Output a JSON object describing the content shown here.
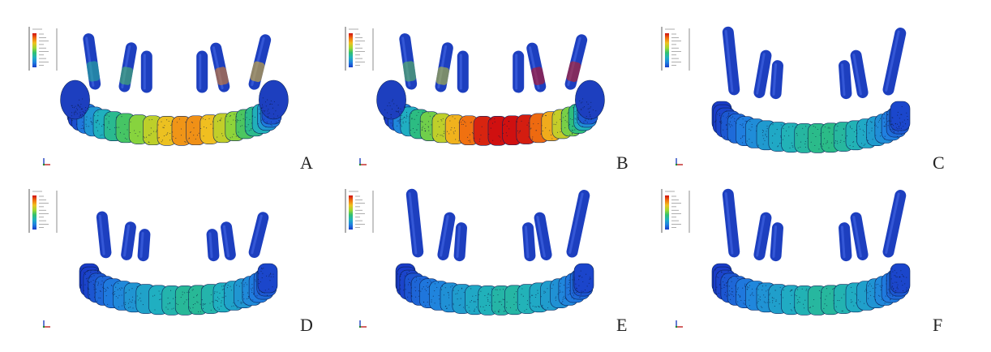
{
  "figure": {
    "panels": [
      {
        "label": "A",
        "stress_level": 0.62,
        "arch": "wide",
        "long_posts": false
      },
      {
        "label": "B",
        "stress_level": 0.85,
        "arch": "wide",
        "long_posts": false
      },
      {
        "label": "C",
        "stress_level": 0.3,
        "arch": "narrow",
        "long_posts": true
      },
      {
        "label": "D",
        "stress_level": 0.28,
        "arch": "narrow",
        "long_posts": false
      },
      {
        "label": "E",
        "stress_level": 0.26,
        "arch": "narrow",
        "long_posts": true
      },
      {
        "label": "F",
        "stress_level": 0.27,
        "arch": "narrow",
        "long_posts": true
      }
    ],
    "colormap": [
      "#d01010",
      "#f07010",
      "#f0c020",
      "#a0d830",
      "#30c070",
      "#20b0c0",
      "#2080e0",
      "#1a3cc8"
    ],
    "base_color": "#1d3fbf",
    "mesh_color": "#0a1a40"
  }
}
